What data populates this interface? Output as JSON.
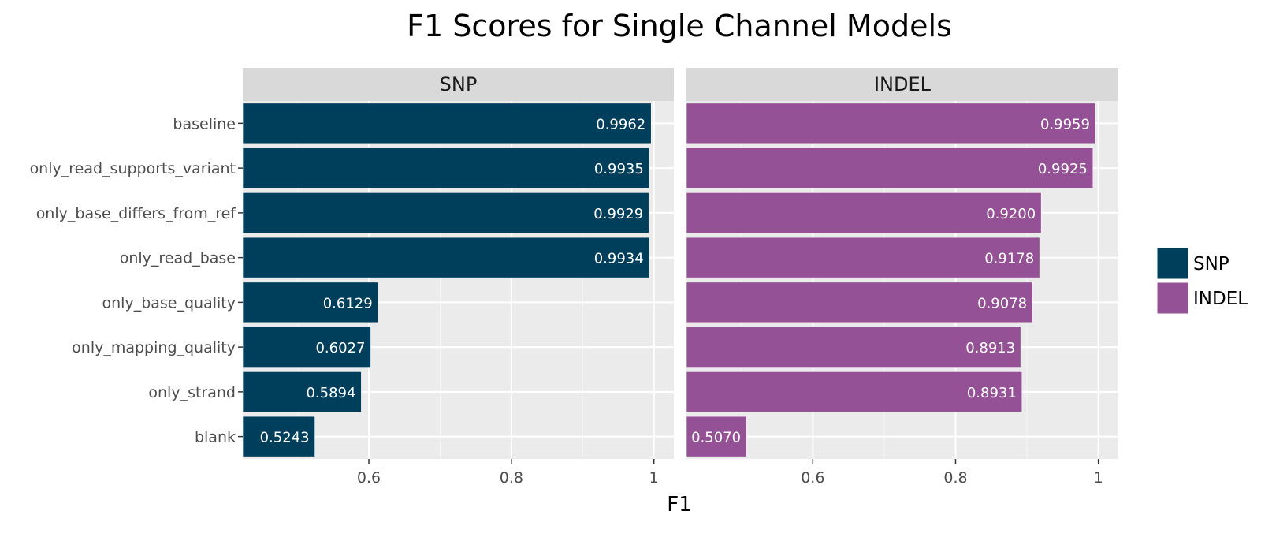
{
  "chart_data": {
    "type": "bar",
    "orientation": "horizontal",
    "title": "F1 Scores for Single Channel Models",
    "xlabel": "F1",
    "ylabel": "",
    "xlim": [
      0.423,
      1.028
    ],
    "x_ticks": [
      {
        "value": 0.6,
        "label": "0.6"
      },
      {
        "value": 0.8,
        "label": "0.8"
      },
      {
        "value": 1.0,
        "label": "1"
      }
    ],
    "grid": true,
    "legend_position": "right",
    "categories": [
      "baseline",
      "only_read_supports_variant",
      "only_base_differs_from_ref",
      "only_read_base",
      "only_base_quality",
      "only_mapping_quality",
      "only_strand",
      "blank"
    ],
    "series": [
      {
        "name": "SNP",
        "color": "#003f5c",
        "values": [
          0.9962,
          0.9935,
          0.9929,
          0.9934,
          0.6129,
          0.6027,
          0.5894,
          0.5243
        ],
        "labels": [
          "0.9962",
          "0.9935",
          "0.9929",
          "0.9934",
          "0.6129",
          "0.6027",
          "0.5894",
          "0.5243"
        ]
      },
      {
        "name": "INDEL",
        "color": "#955196",
        "values": [
          0.9959,
          0.9925,
          0.92,
          0.9178,
          0.9078,
          0.8913,
          0.8931,
          0.507
        ],
        "labels": [
          "0.9959",
          "0.9925",
          "0.9200",
          "0.9178",
          "0.9078",
          "0.8913",
          "0.8931",
          "0.5070"
        ]
      }
    ],
    "facets": [
      "SNP",
      "INDEL"
    ]
  },
  "colors": {
    "panel_background": "#ebebeb",
    "strip_background": "#d9d9d9",
    "grid_major": "#ffffff",
    "grid_minor": "#f5f5f5"
  }
}
